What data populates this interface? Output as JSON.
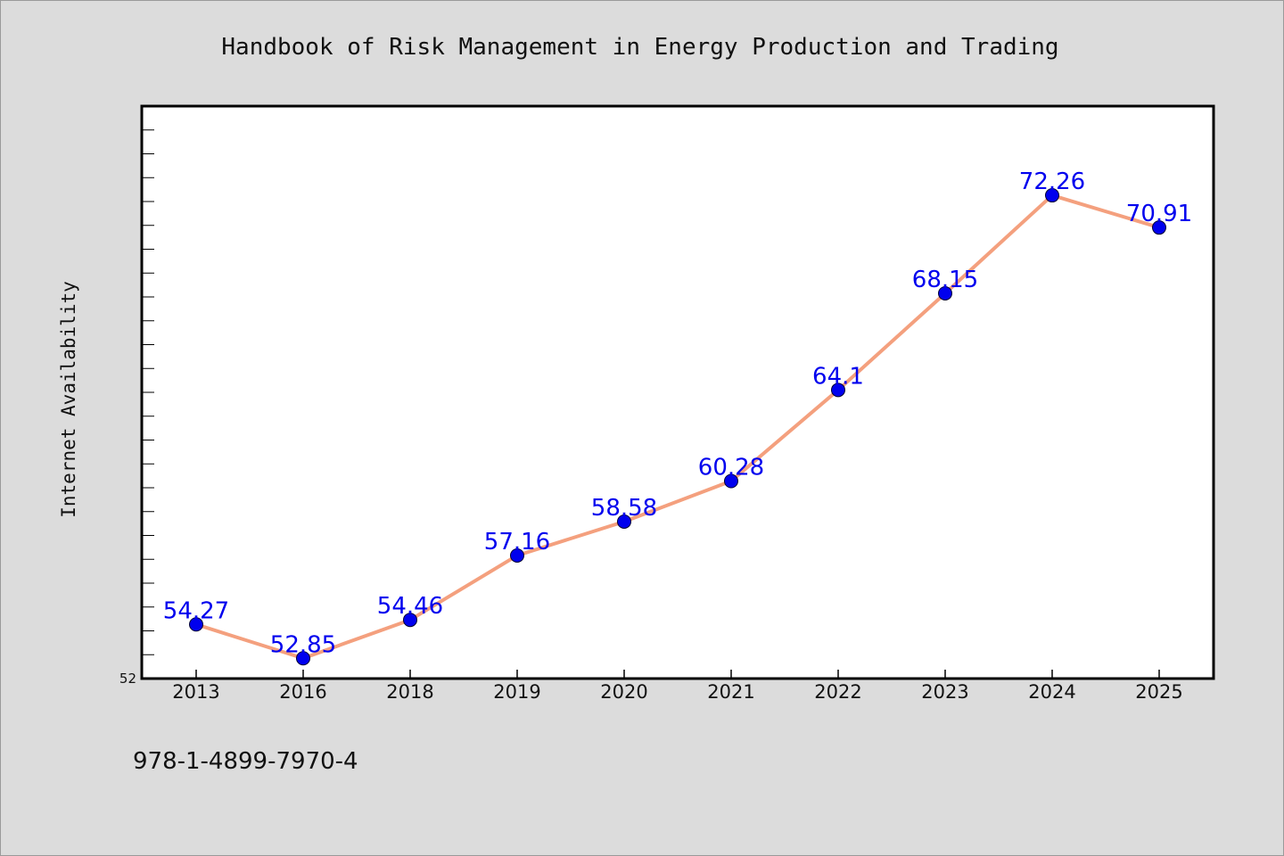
{
  "isbn": "978-1-4899-7970-4",
  "colors": {
    "background": "#dcdcdc",
    "plot_background": "#ffffff",
    "line": "#f4a07e",
    "marker": "#0000ee",
    "data_label": "#0000ee"
  },
  "chart_data": {
    "type": "line",
    "title": "Handbook of Risk Management in Energy Production and Trading",
    "xlabel": "",
    "ylabel": "Internet Availability",
    "categories": [
      "2013",
      "2016",
      "2018",
      "2019",
      "2020",
      "2021",
      "2022",
      "2023",
      "2024",
      "2025"
    ],
    "series": [
      {
        "values": [
          54.27,
          52.85,
          54.46,
          57.16,
          58.58,
          60.28,
          64.1,
          68.15,
          72.26,
          70.91
        ]
      }
    ],
    "data_labels": [
      "54.27",
      "52.85",
      "54.46",
      "57.16",
      "58.58",
      "60.28",
      "64.1",
      "68.15",
      "72.26",
      "70.91"
    ],
    "ylim": [
      52,
      76
    ],
    "ytick_labels": [
      "52"
    ],
    "ytick_step": 1,
    "grid": false,
    "legend": "none"
  }
}
